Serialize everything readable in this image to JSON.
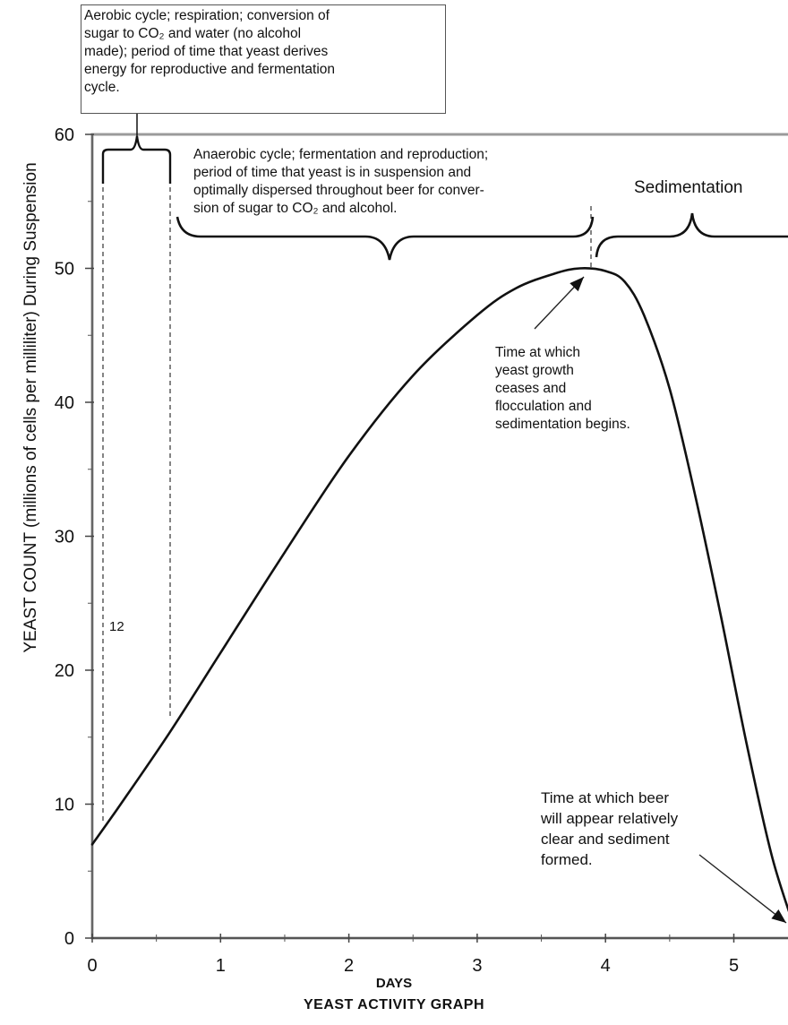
{
  "chart_data": {
    "type": "line",
    "title": "",
    "caption": "YEAST ACTIVITY GRAPH",
    "xlabel": "DAYS",
    "ylabel": "YEAST COUNT (millions of cells per milliliter) During Suspension",
    "xlim": [
      0,
      5.5
    ],
    "ylim": [
      0,
      60
    ],
    "x_ticks": [
      "0",
      "1",
      "2",
      "3",
      "4",
      "5"
    ],
    "y_ticks": [
      "0",
      "10",
      "20",
      "30",
      "40",
      "50",
      "60"
    ],
    "grid": false,
    "series": [
      {
        "name": "",
        "x": [
          0,
          0.2,
          0.6,
          1.0,
          1.5,
          2.0,
          2.5,
          3.0,
          3.3,
          3.6,
          3.8,
          4.0,
          4.15,
          4.3,
          4.5,
          4.7,
          4.9,
          5.1,
          5.3,
          5.5
        ],
        "y": [
          7,
          9.7,
          15.3,
          21.3,
          28.8,
          36,
          42,
          46.5,
          48.5,
          49.6,
          50,
          49.8,
          49,
          46.5,
          41,
          33,
          24,
          14.5,
          6,
          0
        ]
      }
    ],
    "annotations": {
      "aerobic_box": [
        "Aerobic cycle; respiration; conversion of",
        " sugar to CO₂ and water (no alcohol",
        "made); period of time that yeast derives",
        "energy for reproductive and fermentation",
        "cycle."
      ],
      "anaerobic": [
        "Anaerobic cycle; fermentation and reproduction;",
        "period of time that yeast is in suspension and",
        "optimally dispersed throughout beer for conver-",
        "sion of sugar to CO₂ and alcohol."
      ],
      "sedimentation": "Sedimentation",
      "peak": [
        "Time at which",
        "yeast growth",
        "ceases and",
        "flocculation and",
        "sedimentation begins."
      ],
      "clear": [
        "Time at which beer",
        "will appear relatively",
        "clear and sediment",
        "formed."
      ],
      "marker_12": "12"
    }
  }
}
